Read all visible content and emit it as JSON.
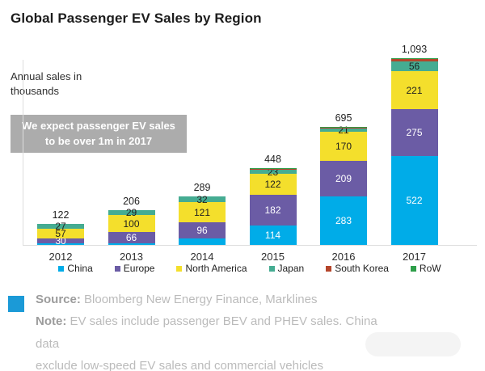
{
  "header": {
    "title": "Global Passenger EV Sales by Region"
  },
  "chart_notes": {
    "axis_note": "Annual sales in\nthousands",
    "callout_bg": "#acacac",
    "callout": "We expect passenger EV sales\nto be over 1m in 2017"
  },
  "chart_data": {
    "type": "bar",
    "stacked": true,
    "title": "Global Passenger EV Sales by Region",
    "unit": "thousands",
    "categories": [
      "2012",
      "2013",
      "2014",
      "2015",
      "2016",
      "2017"
    ],
    "totals": [
      "122",
      "206",
      "289",
      "448",
      "695",
      "1,093"
    ],
    "ylim": [
      0,
      1093
    ],
    "grid": false,
    "legend_position": "bottom",
    "series": [
      {
        "name": "China",
        "color": "#00ACE8",
        "label_color": "#ffffff",
        "values": [
          8,
          11,
          40,
          114,
          283,
          522
        ],
        "show_labels": [
          false,
          false,
          false,
          true,
          true,
          true
        ]
      },
      {
        "name": "Europe",
        "color": "#6B5CA5",
        "label_color": "#ffffff",
        "values": [
          30,
          66,
          96,
          182,
          209,
          275
        ],
        "show_labels": [
          true,
          true,
          true,
          true,
          true,
          true
        ]
      },
      {
        "name": "North America",
        "color": "#F4DF2C",
        "label_color": "#1f1f1f",
        "values": [
          57,
          100,
          121,
          122,
          170,
          221
        ],
        "show_labels": [
          true,
          true,
          true,
          true,
          true,
          true
        ]
      },
      {
        "name": "Japan",
        "color": "#45AC92",
        "label_color": "#1f1f1f",
        "values": [
          27,
          29,
          32,
          23,
          21,
          56
        ],
        "show_labels": [
          true,
          true,
          true,
          true,
          true,
          true
        ]
      },
      {
        "name": "South Korea",
        "color": "#B5452B",
        "label_color": "#1f1f1f",
        "values": [
          0,
          0,
          0,
          3,
          6,
          13
        ],
        "show_labels": [
          false,
          false,
          false,
          false,
          false,
          false
        ]
      },
      {
        "name": "RoW",
        "color": "#2E9E49",
        "label_color": "#1f1f1f",
        "values": [
          0,
          0,
          0,
          4,
          6,
          6
        ],
        "show_labels": [
          false,
          false,
          false,
          false,
          false,
          false
        ]
      }
    ]
  },
  "footer": {
    "square_color": "#1B9AD7",
    "source_label": "Source:",
    "source_text": "Bloomberg New Energy Finance, Marklines",
    "note_label": "Note:",
    "note_text": "EV sales include passenger BEV and PHEV sales. China data\nexclude low-speed EV sales and commercial vehicles"
  }
}
